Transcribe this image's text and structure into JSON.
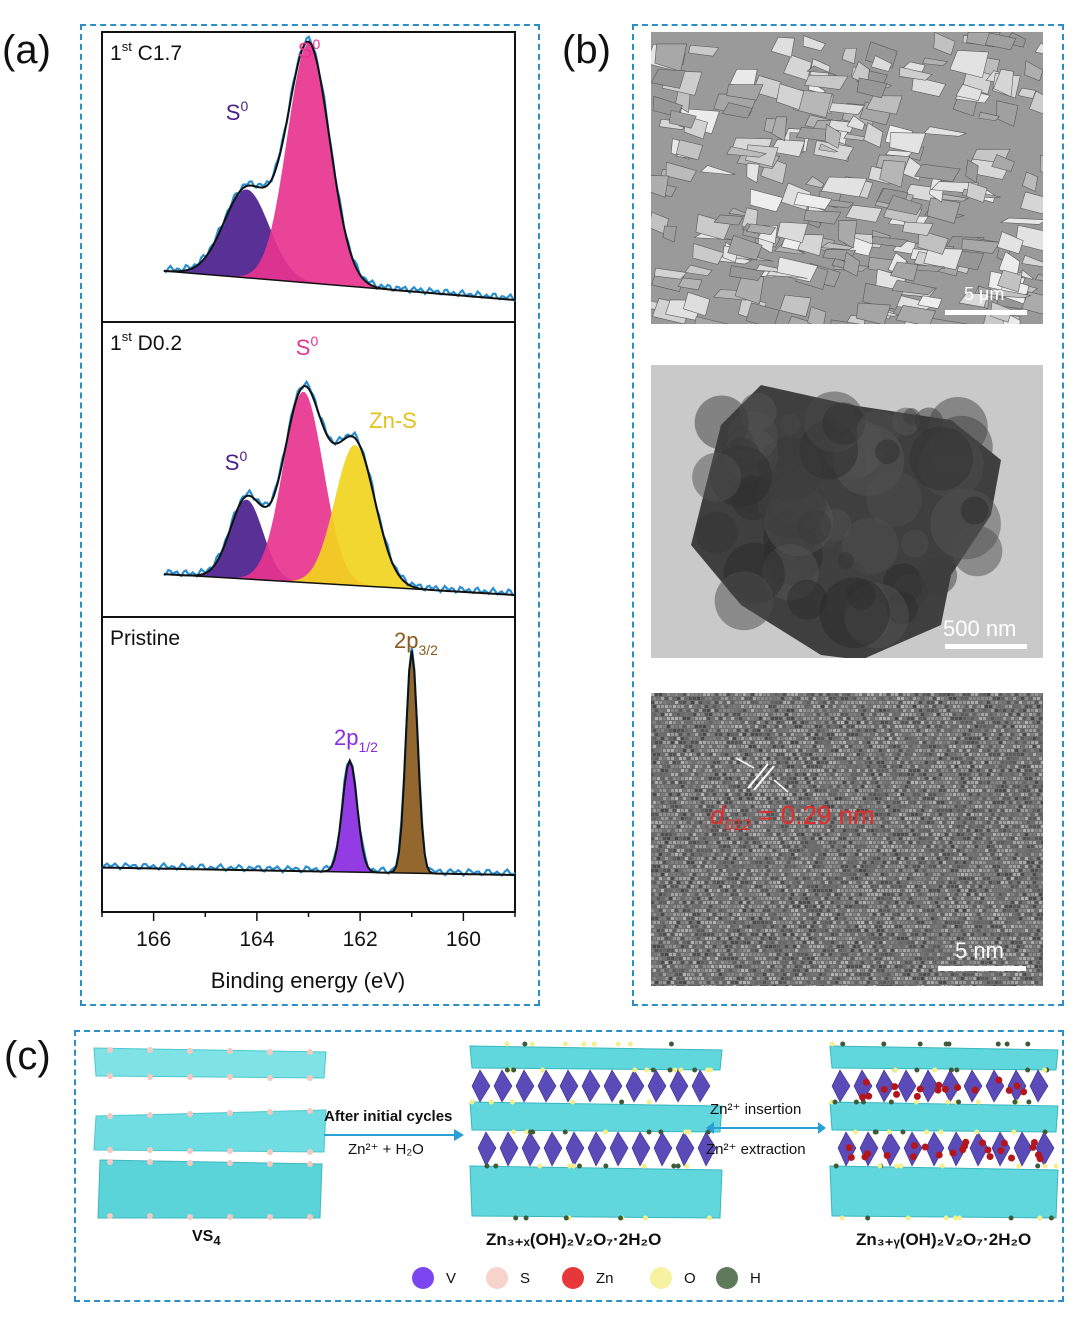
{
  "panels": {
    "a": {
      "label": "(a)"
    },
    "b": {
      "label": "(b)"
    },
    "c": {
      "label": "(c)"
    }
  },
  "chart_data": {
    "type": "line",
    "xlabel": "Binding energy (eV)",
    "xlim": [
      167,
      159
    ],
    "xticks": [
      "166",
      "164",
      "162",
      "160"
    ],
    "subplots": [
      {
        "label_pre": "1",
        "label_sup": "st",
        "label_post": " C1.7",
        "peaks": [
          {
            "label": "S",
            "sup": "0",
            "center": 164.2,
            "color": "#4b1e8c"
          },
          {
            "label": "S",
            "sup": "0",
            "center": 163.0,
            "color": "#e8348f"
          }
        ]
      },
      {
        "label_pre": "1",
        "label_sup": "st",
        "label_post": " D0.2",
        "peaks": [
          {
            "label": "S",
            "sup": "0",
            "center": 164.2,
            "color": "#4b1e8c"
          },
          {
            "label": "S",
            "sup": "0",
            "center": 163.1,
            "color": "#e8348f"
          },
          {
            "label": "Zn-S",
            "sup": "",
            "center": 162.1,
            "color": "#f1d41e"
          }
        ]
      },
      {
        "label_pre": "Pristine",
        "label_sup": "",
        "label_post": "",
        "peaks": [
          {
            "label": "2p",
            "sub": "1/2",
            "center": 162.2,
            "color": "#8b2be2"
          },
          {
            "label": "2p",
            "sub": "3/2",
            "center": 161.0,
            "color": "#8a5a1c"
          }
        ]
      }
    ]
  },
  "micrographs": {
    "sem_scale": "5 μm",
    "tem_scale": "500 nm",
    "hrtem_scale": "5 nm",
    "d_label": "d",
    "d_sub": "012",
    "d_value": " = 0.29 nm"
  },
  "scheme": {
    "left_caption": "VS",
    "left_caption_sub": "4",
    "arrow1_top": "After initial cycles",
    "arrow1_bottom": "Zn²⁺ + H₂O",
    "arrow2_top": "Zn²⁺ insertion",
    "arrow2_bottom": "Zn²⁺ extraction",
    "mid_caption": "Zn₃₊ₓ(OH)₂V₂O₇·2H₂O",
    "right_caption": "Zn₃₊ᵧ(OH)₂V₂O₇·2H₂O",
    "legend": [
      {
        "label": "V",
        "color": "#7b45f0"
      },
      {
        "label": "S",
        "color": "#f7d3cc"
      },
      {
        "label": "Zn",
        "color": "#e8373a"
      },
      {
        "label": "O",
        "color": "#f6f2a2"
      },
      {
        "label": "H",
        "color": "#5f7a5a"
      }
    ]
  }
}
